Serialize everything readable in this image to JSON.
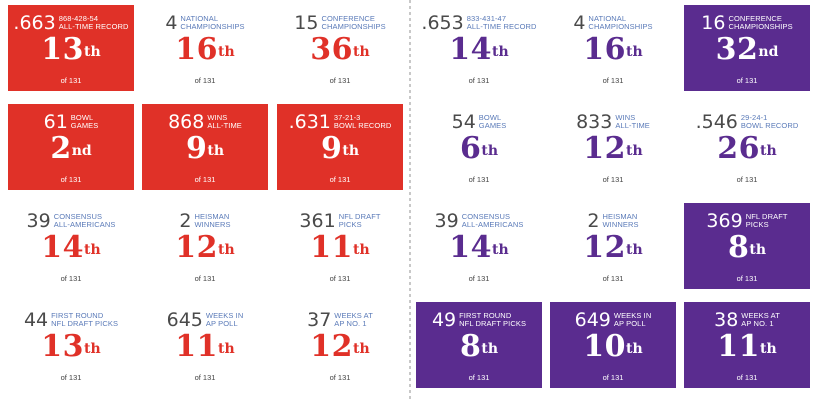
{
  "of_text": "of 131",
  "colors": {
    "school_a": "#e03128",
    "school_b": "#5a2c8f",
    "label": "#5a7ab8"
  },
  "left": {
    "tiles": [
      {
        "big": ".663",
        "label": [
          "868-428-54",
          "ALL-TIME RECORD"
        ],
        "rank": "13",
        "suffix": "th",
        "highlighted": true
      },
      {
        "big": "4",
        "label": [
          "NATIONAL",
          "CHAMPIONSHIPS"
        ],
        "rank": "16",
        "suffix": "th",
        "highlighted": false
      },
      {
        "big": "15",
        "label": [
          "CONFERENCE",
          "CHAMPIONSHIPS"
        ],
        "rank": "36",
        "suffix": "th",
        "highlighted": false
      },
      {
        "big": "61",
        "label": [
          "BOWL",
          "GAMES"
        ],
        "rank": "2",
        "suffix": "nd",
        "highlighted": true
      },
      {
        "big": "868",
        "label": [
          "WINS",
          "ALL-TIME"
        ],
        "rank": "9",
        "suffix": "th",
        "highlighted": true
      },
      {
        "big": ".631",
        "label": [
          "37-21-3",
          "BOWL RECORD"
        ],
        "rank": "9",
        "suffix": "th",
        "highlighted": true
      },
      {
        "big": "39",
        "label": [
          "CONSENSUS",
          "ALL-AMERICANS"
        ],
        "rank": "14",
        "suffix": "th",
        "highlighted": false
      },
      {
        "big": "2",
        "label": [
          "HEISMAN",
          "WINNERS"
        ],
        "rank": "12",
        "suffix": "th",
        "highlighted": false
      },
      {
        "big": "361",
        "label": [
          "NFL DRAFT",
          "PICKS"
        ],
        "rank": "11",
        "suffix": "th",
        "highlighted": false
      },
      {
        "big": "44",
        "label": [
          "FIRST ROUND",
          "NFL DRAFT PICKS"
        ],
        "rank": "13",
        "suffix": "th",
        "highlighted": false
      },
      {
        "big": "645",
        "label": [
          "WEEKS IN",
          "AP POLL"
        ],
        "rank": "11",
        "suffix": "th",
        "highlighted": false
      },
      {
        "big": "37",
        "label": [
          "WEEKS AT",
          "AP NO. 1"
        ],
        "rank": "12",
        "suffix": "th",
        "highlighted": false
      }
    ]
  },
  "right": {
    "tiles": [
      {
        "big": ".653",
        "label": [
          "833-431-47",
          "ALL-TIME RECORD"
        ],
        "rank": "14",
        "suffix": "th",
        "highlighted": false
      },
      {
        "big": "4",
        "label": [
          "NATIONAL",
          "CHAMPIONSHIPS"
        ],
        "rank": "16",
        "suffix": "th",
        "highlighted": false
      },
      {
        "big": "16",
        "label": [
          "CONFERENCE",
          "CHAMPIONSHIPS"
        ],
        "rank": "32",
        "suffix": "nd",
        "highlighted": true
      },
      {
        "big": "54",
        "label": [
          "BOWL",
          "GAMES"
        ],
        "rank": "6",
        "suffix": "th",
        "highlighted": false
      },
      {
        "big": "833",
        "label": [
          "WINS",
          "ALL-TIME"
        ],
        "rank": "12",
        "suffix": "th",
        "highlighted": false
      },
      {
        "big": ".546",
        "label": [
          "29-24-1",
          "BOWL RECORD"
        ],
        "rank": "26",
        "suffix": "th",
        "highlighted": false
      },
      {
        "big": "39",
        "label": [
          "CONSENSUS",
          "ALL-AMERICANS"
        ],
        "rank": "14",
        "suffix": "th",
        "highlighted": false
      },
      {
        "big": "2",
        "label": [
          "HEISMAN",
          "WINNERS"
        ],
        "rank": "12",
        "suffix": "th",
        "highlighted": false
      },
      {
        "big": "369",
        "label": [
          "NFL DRAFT",
          "PICKS"
        ],
        "rank": "8",
        "suffix": "th",
        "highlighted": true
      },
      {
        "big": "49",
        "label": [
          "FIRST ROUND",
          "NFL DRAFT PICKS"
        ],
        "rank": "8",
        "suffix": "th",
        "highlighted": true
      },
      {
        "big": "649",
        "label": [
          "WEEKS IN",
          "AP POLL"
        ],
        "rank": "10",
        "suffix": "th",
        "highlighted": true
      },
      {
        "big": "38",
        "label": [
          "WEEKS AT",
          "AP NO. 1"
        ],
        "rank": "11",
        "suffix": "th",
        "highlighted": true
      }
    ]
  }
}
